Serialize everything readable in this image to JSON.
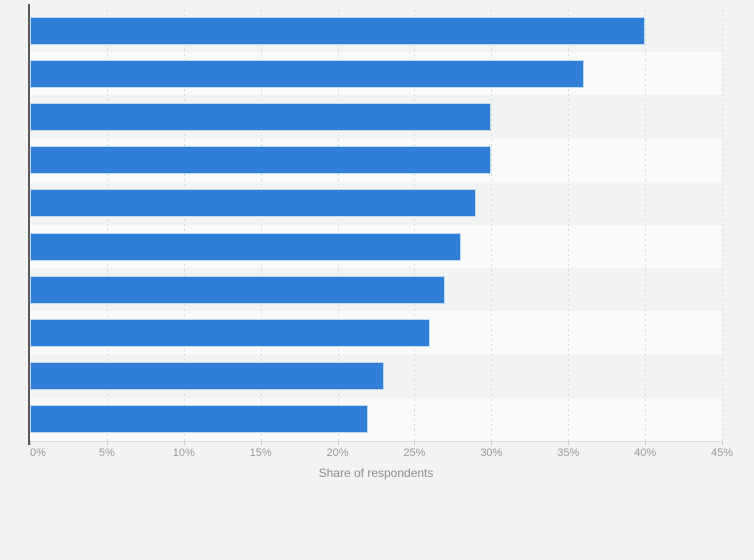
{
  "page": {
    "background_color": "#f2f3f3"
  },
  "chart_data": {
    "type": "bar",
    "orientation": "horizontal",
    "title": "",
    "values": [
      40,
      36,
      30,
      30,
      29,
      28,
      27,
      26,
      23,
      22
    ],
    "value_suffix": "%",
    "category_labels_visible": false,
    "xlabel": "Share of respondents",
    "x_ticks": [
      "0%",
      "5%",
      "10%",
      "15%",
      "20%",
      "25%",
      "30%",
      "35%",
      "40%",
      "45%"
    ],
    "x_tick_values": [
      0,
      5,
      10,
      15,
      20,
      25,
      30,
      35,
      40,
      45
    ],
    "xlim": [
      0,
      45
    ],
    "legend": "none",
    "grid": "vertical-dashed",
    "colors": {
      "bar": "#2f7ed8",
      "bar_border": "rgba(255,255,255,0.70)",
      "alternate_band": "#fafafa",
      "gridline": "#d9dadb",
      "y_axis_line": "#5a5a5a",
      "x_axis_line": "#dcdcdd",
      "tick_mark": "#c9c9c9",
      "tick_label": "#999999",
      "axis_title": "#8d8d8d"
    }
  }
}
